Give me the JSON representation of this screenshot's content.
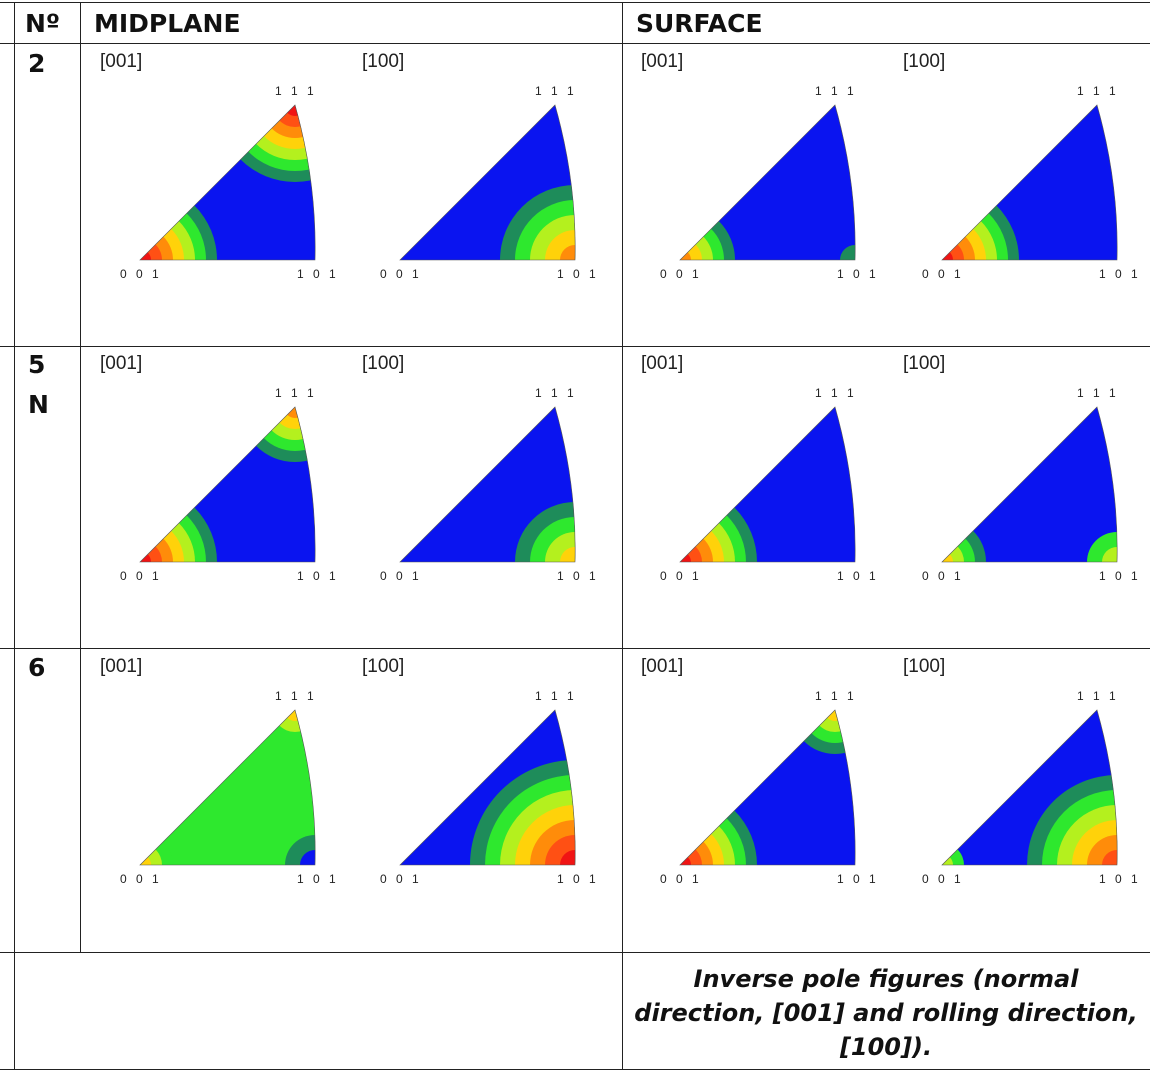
{
  "headers": {
    "number": "Nº",
    "midplane": "MIDPLANE",
    "surface": "SURFACE"
  },
  "rows": [
    {
      "number": [
        "2"
      ]
    },
    {
      "number": [
        "5",
        "N"
      ]
    },
    {
      "number": [
        "6"
      ]
    }
  ],
  "direction_labels": {
    "normal": "[001]",
    "rolling": "[100]"
  },
  "vertex_labels": {
    "v001": "0 0 1",
    "v101": "1 0 1",
    "v111": "1 1 1"
  },
  "caption": "Inverse pole figures (normal direction, [001] and rolling direction, [100]).",
  "colors": {
    "blue": "#0a14f0",
    "teal": "#1e8c5a",
    "green": "#2ee82e",
    "lime": "#b4f01e",
    "yellow": "#ffd20a",
    "orange": "#ff8c0a",
    "red_orange": "#ff5014",
    "red": "#f01414"
  },
  "figures": [
    {
      "row": 0,
      "section": "midplane",
      "direction": "normal",
      "corner001": [
        "red",
        "red_orange",
        "orange",
        "yellow",
        "lime",
        "green",
        "teal"
      ],
      "corner111": [
        "red",
        "red_orange",
        "orange",
        "yellow",
        "lime",
        "green",
        "teal"
      ],
      "corner101": [],
      "bg": "blue"
    },
    {
      "row": 0,
      "section": "midplane",
      "direction": "rolling",
      "corner001": [],
      "corner111": [],
      "corner101": [
        "orange",
        "yellow",
        "lime",
        "green",
        "teal"
      ],
      "bg": "blue"
    },
    {
      "row": 0,
      "section": "surface",
      "direction": "normal",
      "corner001": [
        "orange",
        "yellow",
        "lime",
        "green",
        "teal"
      ],
      "corner111": [],
      "corner101": [
        "teal"
      ],
      "bg": "blue"
    },
    {
      "row": 0,
      "section": "surface",
      "direction": "rolling",
      "corner001": [
        "red",
        "red_orange",
        "orange",
        "yellow",
        "lime",
        "green",
        "teal"
      ],
      "corner111": [],
      "corner101": [],
      "bg": "blue"
    },
    {
      "row": 1,
      "section": "midplane",
      "direction": "normal",
      "corner001": [
        "red",
        "red_orange",
        "orange",
        "yellow",
        "lime",
        "green",
        "teal"
      ],
      "corner111": [
        "orange",
        "yellow",
        "lime",
        "green",
        "teal"
      ],
      "corner101": [],
      "bg": "blue"
    },
    {
      "row": 1,
      "section": "midplane",
      "direction": "rolling",
      "corner001": [],
      "corner111": [],
      "corner101": [
        "yellow",
        "lime",
        "green",
        "teal"
      ],
      "bg": "blue"
    },
    {
      "row": 1,
      "section": "surface",
      "direction": "normal",
      "corner001": [
        "red",
        "red_orange",
        "orange",
        "yellow",
        "lime",
        "green",
        "teal"
      ],
      "corner111": [],
      "corner101": [],
      "bg": "blue"
    },
    {
      "row": 1,
      "section": "surface",
      "direction": "rolling",
      "corner001": [
        "yellow",
        "lime",
        "green",
        "teal"
      ],
      "corner111": [],
      "corner101": [
        "lime",
        "green"
      ],
      "bg": "blue"
    },
    {
      "row": 2,
      "section": "midplane",
      "direction": "normal",
      "corner001": [
        "yellow",
        "lime",
        "green"
      ],
      "corner111": [
        "yellow",
        "lime",
        "green"
      ],
      "corner101": [
        "blue",
        "teal"
      ],
      "bg": "green"
    },
    {
      "row": 2,
      "section": "midplane",
      "direction": "rolling",
      "corner001": [],
      "corner111": [],
      "corner101": [
        "red",
        "red_orange",
        "orange",
        "yellow",
        "lime",
        "green",
        "teal"
      ],
      "bg": "blue"
    },
    {
      "row": 2,
      "section": "surface",
      "direction": "normal",
      "corner001": [
        "red",
        "red_orange",
        "orange",
        "yellow",
        "lime",
        "green",
        "teal"
      ],
      "corner111": [
        "yellow",
        "lime",
        "green",
        "teal"
      ],
      "corner101": [],
      "bg": "blue"
    },
    {
      "row": 2,
      "section": "surface",
      "direction": "rolling",
      "corner001": [
        "lime",
        "green"
      ],
      "corner111": [],
      "corner101": [
        "red_orange",
        "orange",
        "yellow",
        "lime",
        "green",
        "teal"
      ],
      "bg": "blue"
    }
  ]
}
